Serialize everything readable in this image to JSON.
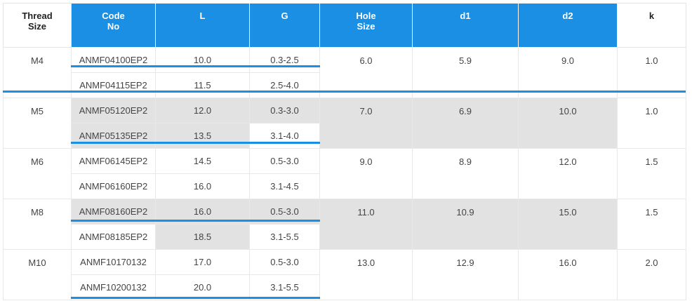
{
  "headers": {
    "thread_size": "Thread\nSize",
    "code_no": "Code\nNo",
    "l": "L",
    "g": "G",
    "hole_size": "Hole\nSize",
    "d1": "d1",
    "d2": "d2",
    "k": "k"
  },
  "groups": [
    {
      "thread": "M4",
      "hole": "6.0",
      "d1": "5.9",
      "d2": "9.0",
      "k": "1.0",
      "rows": [
        {
          "code": "ANMF04100EP2",
          "l": "10.0",
          "g": "0.3-2.5"
        },
        {
          "code": "ANMF04115EP2",
          "l": "11.5",
          "g": "2.5-4.0"
        }
      ]
    },
    {
      "thread": "M5",
      "hole": "7.0",
      "d1": "6.9",
      "d2": "10.0",
      "k": "1.0",
      "rows": [
        {
          "code": "ANMF05120EP2",
          "l": "12.0",
          "g": "0.3-3.0"
        },
        {
          "code": "ANMF05135EP2",
          "l": "13.5",
          "g": "3.1-4.0"
        }
      ]
    },
    {
      "thread": "M6",
      "hole": "9.0",
      "d1": "8.9",
      "d2": "12.0",
      "k": "1.5",
      "rows": [
        {
          "code": "ANMF06145EP2",
          "l": "14.5",
          "g": "0.5-3.0"
        },
        {
          "code": "ANMF06160EP2",
          "l": "16.0",
          "g": "3.1-4.5"
        }
      ]
    },
    {
      "thread": "M8",
      "hole": "11.0",
      "d1": "10.9",
      "d2": "15.0",
      "k": "1.5",
      "rows": [
        {
          "code": "ANMF08160EP2",
          "l": "16.0",
          "g": "0.5-3.0"
        },
        {
          "code": "ANMF08185EP2",
          "l": "18.5",
          "g": "3.1-5.5"
        }
      ]
    },
    {
      "thread": "M10",
      "hole": "13.0",
      "d1": "12.9",
      "d2": "16.0",
      "k": "2.0",
      "rows": [
        {
          "code": "ANMF10170132",
          "l": "17.0",
          "g": "0.5-3.0"
        },
        {
          "code": "ANMF10200132",
          "l": "20.0",
          "g": "3.1-5.5"
        }
      ]
    }
  ],
  "colors": {
    "header_blue": "#1a8fe3",
    "row_gray": "#e2e2e2",
    "separator_blue": "#1a8fe3"
  }
}
